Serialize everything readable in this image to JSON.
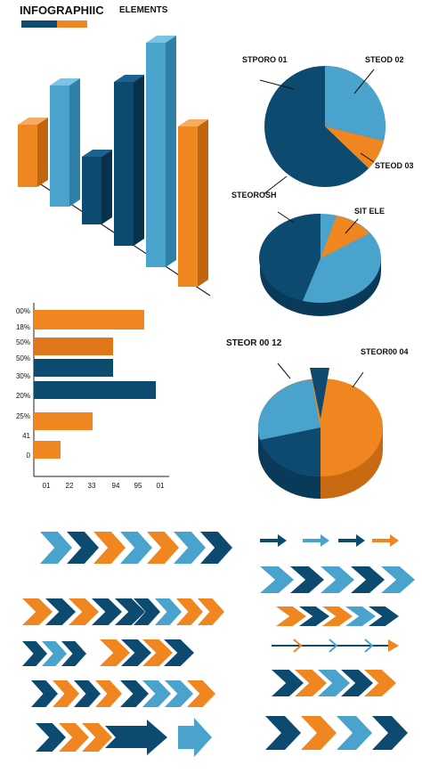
{
  "header": {
    "title": "INFOGRAPHIIC",
    "subtitle": "ELEMENTS"
  },
  "pie_top": {
    "labels": [
      "STPORO 01",
      "STEOD 02",
      "STEOD 03",
      "STEOROSH"
    ]
  },
  "pie_middle": {
    "label": "SIT ELE"
  },
  "bar_panel": {
    "row_labels": [
      "00%",
      "18%",
      "50%",
      "50%",
      "30%",
      "20%",
      "25%",
      "41",
      "0"
    ],
    "column_labels": [
      "01",
      "22",
      "33",
      "94",
      "95",
      "01"
    ]
  },
  "pie_bottom": {
    "labels": [
      "STEOR 00 12",
      "STEOR00 04"
    ]
  }
}
